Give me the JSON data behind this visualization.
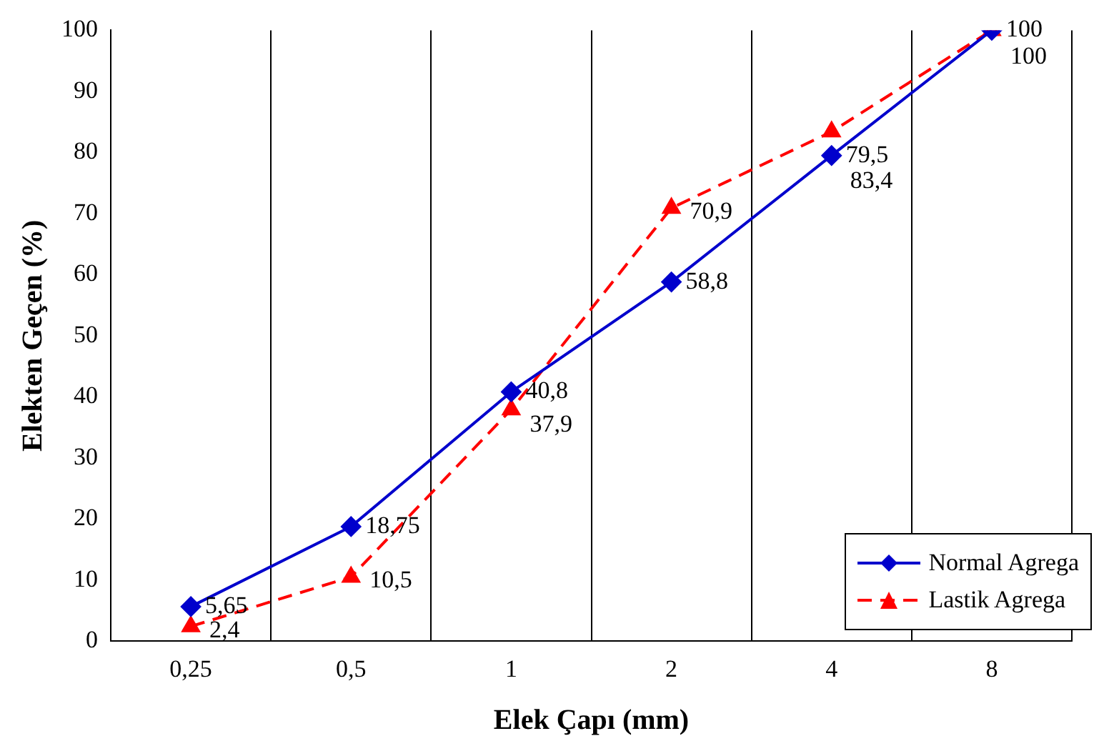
{
  "chart_data": {
    "type": "line",
    "xlabel": "Elek Çapı (mm)",
    "ylabel": "Elekten Geçen (%)",
    "categories": [
      "0,25",
      "0,5",
      "1",
      "2",
      "4",
      "8"
    ],
    "ylim": [
      0,
      100
    ],
    "yticks": [
      0,
      10,
      20,
      30,
      40,
      50,
      60,
      70,
      80,
      90,
      100
    ],
    "grid": "x",
    "legend": "bottom right",
    "series": [
      {
        "name": "Normal Agrega",
        "color": "#0000cc",
        "marker": "diamond",
        "line_style": "solid",
        "values": [
          5.65,
          18.75,
          40.8,
          58.8,
          79.5,
          100
        ],
        "value_labels": [
          "5,65",
          "18,75",
          "40,8",
          "58,8",
          "79,5",
          "100"
        ]
      },
      {
        "name": "Lastik Agrega",
        "color": "#ff0000",
        "marker": "triangle",
        "line_style": "dashed",
        "values": [
          2.4,
          10.5,
          37.9,
          70.9,
          83.4,
          100
        ],
        "value_labels": [
          "2,4",
          "10,5",
          "37,9",
          "70,9",
          "83,4",
          "100"
        ]
      }
    ]
  }
}
